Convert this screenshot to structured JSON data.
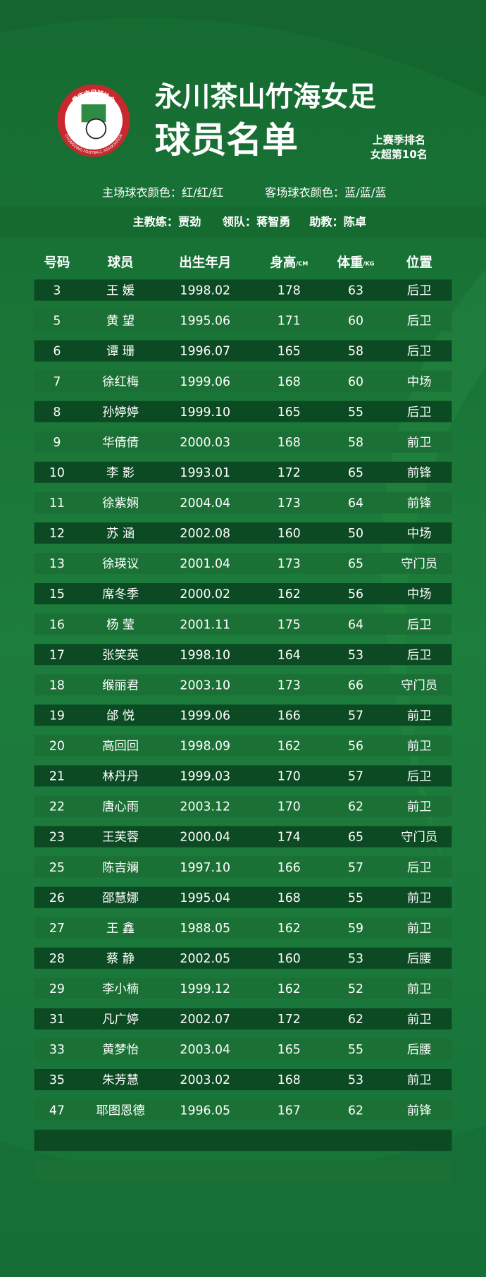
{
  "header": {
    "title": "永川茶山竹海女足",
    "subtitle": "球员名单",
    "ranking": [
      "上赛季排名",
      "女超第10名"
    ],
    "logo": {
      "cn": "重庆市足球协会",
      "en": "CHONGQING FOOTBALL ASSOCIATION"
    }
  },
  "kits": [
    "主场球衣颜色：红/红/红",
    "客场球衣颜色：蓝/蓝/蓝"
  ],
  "staff": [
    "主教练：贾劲",
    "领队：蒋智勇",
    "助教：陈卓"
  ],
  "table": {
    "columns": [
      {
        "label": "号码"
      },
      {
        "label": "球员"
      },
      {
        "label": "出生年月"
      },
      {
        "label": "身高",
        "unit": "/CM"
      },
      {
        "label": "体重",
        "unit": "/KG"
      },
      {
        "label": "位置"
      }
    ],
    "rows": [
      [
        3,
        "王 媛",
        "1998.02",
        178,
        63,
        "后卫"
      ],
      [
        5,
        "黄 望",
        "1995.06",
        171,
        60,
        "后卫"
      ],
      [
        6,
        "谭 珊",
        "1996.07",
        165,
        58,
        "后卫"
      ],
      [
        7,
        "徐红梅",
        "1999.06",
        168,
        60,
        "中场"
      ],
      [
        8,
        "孙婷婷",
        "1999.10",
        165,
        55,
        "后卫"
      ],
      [
        9,
        "华倩倩",
        "2000.03",
        168,
        58,
        "前卫"
      ],
      [
        10,
        "李 影",
        "1993.01",
        172,
        65,
        "前锋"
      ],
      [
        11,
        "徐紫娴",
        "2004.04",
        173,
        64,
        "前锋"
      ],
      [
        12,
        "苏 涵",
        "2002.08",
        160,
        50,
        "中场"
      ],
      [
        13,
        "徐瑛议",
        "2001.04",
        173,
        65,
        "守门员"
      ],
      [
        15,
        "席冬季",
        "2000.02",
        162,
        56,
        "中场"
      ],
      [
        16,
        "杨 莹",
        "2001.11",
        175,
        64,
        "后卫"
      ],
      [
        17,
        "张笑英",
        "1998.10",
        164,
        53,
        "后卫"
      ],
      [
        18,
        "缑丽君",
        "2003.10",
        173,
        66,
        "守门员"
      ],
      [
        19,
        "邰 悦",
        "1999.06",
        166,
        57,
        "前卫"
      ],
      [
        20,
        "高回回",
        "1998.09",
        162,
        56,
        "前卫"
      ],
      [
        21,
        "林丹丹",
        "1999.03",
        170,
        57,
        "后卫"
      ],
      [
        22,
        "唐心雨",
        "2003.12",
        170,
        62,
        "前卫"
      ],
      [
        23,
        "王芙蓉",
        "2000.04",
        174,
        65,
        "守门员"
      ],
      [
        25,
        "陈吉斓",
        "1997.10",
        166,
        57,
        "后卫"
      ],
      [
        26,
        "邵慧娜",
        "1995.04",
        168,
        55,
        "前卫"
      ],
      [
        27,
        "王 鑫",
        "1988.05",
        162,
        59,
        "前卫"
      ],
      [
        28,
        "蔡 静",
        "2002.05",
        160,
        53,
        "后腰"
      ],
      [
        29,
        "李小楠",
        "1999.12",
        162,
        52,
        "前卫"
      ],
      [
        31,
        "凡广婷",
        "2002.07",
        172,
        62,
        "前卫"
      ],
      [
        33,
        "黄梦怡",
        "2003.04",
        165,
        55,
        "后腰"
      ],
      [
        35,
        "朱芳慧",
        "2003.02",
        168,
        53,
        "前卫"
      ],
      [
        47,
        "耶图恩德",
        "1996.05",
        167,
        62,
        "前锋"
      ]
    ]
  }
}
